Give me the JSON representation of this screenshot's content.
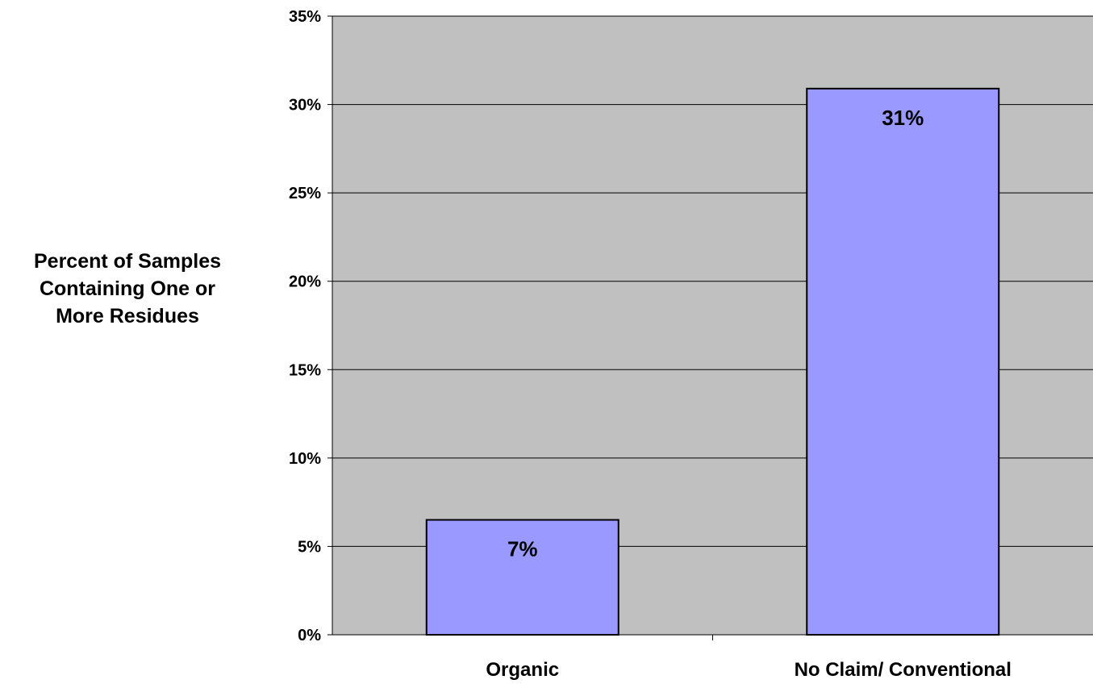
{
  "chart_data": {
    "type": "bar",
    "title": "",
    "xlabel": "",
    "ylabel": "Percent of Samples Containing One or More Residues",
    "ylabel_lines": [
      "Percent of Samples",
      "Containing One or",
      "More Residues"
    ],
    "categories": [
      "Organic",
      "No Claim/ Conventional"
    ],
    "values": [
      6.5,
      30.9
    ],
    "data_labels": [
      "7%",
      "31%"
    ],
    "ylim": [
      0,
      35
    ],
    "yticks": [
      0,
      5,
      10,
      15,
      20,
      25,
      30,
      35
    ],
    "ytick_labels": [
      "0%",
      "5%",
      "10%",
      "15%",
      "20%",
      "25%",
      "30%",
      "35%"
    ],
    "grid": true,
    "legend": "none",
    "colors": {
      "plot_background": "#c0c0c0",
      "bar_fill": "#9999ff",
      "bar_stroke": "#000000",
      "gridline": "#000000",
      "text": "#000000"
    }
  }
}
